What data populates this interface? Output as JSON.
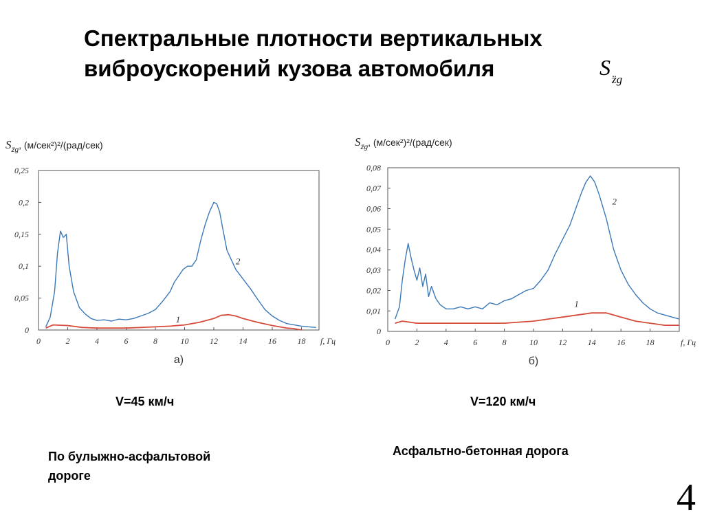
{
  "slide": {
    "title_line1": "Спектральные плотности вертикальных",
    "title_line2": "виброускорений кузова автомобиля",
    "title_symbol": "S",
    "title_symbol_sub": "z̈g",
    "page_number": "4"
  },
  "captions": {
    "speed_a": "V=45 км/ч",
    "speed_b": "V=120 км/ч",
    "road_a_line1": "По булыжно-асфальтовой",
    "road_a_line2": "дороге",
    "road_b": "Асфальтно-бетонная дорога"
  },
  "colors": {
    "curve_1": "#d64a3a",
    "curve_2": "#3a78b8",
    "frame": "#555555"
  },
  "chart_data": [
    {
      "type": "line",
      "panel_label": "а)",
      "ylabel": "S, (м/сек²)²/(рад/сек)",
      "ylabel_sub": "z̈g",
      "xlabel": "f, Гц",
      "xlim": [
        0,
        19.2
      ],
      "ylim": [
        0,
        0.25
      ],
      "x_ticks": [
        "0",
        "2",
        "4",
        "6",
        "8",
        "10",
        "12",
        "14",
        "16",
        "18"
      ],
      "y_ticks": [
        "0",
        "0.05",
        "0.1",
        "0.15",
        "0.2",
        "0.25"
      ],
      "series": [
        {
          "name": "1",
          "x": [
            0.5,
            1.0,
            2.0,
            3.0,
            4.0,
            6.0,
            8.0,
            9.0,
            10.0,
            11.0,
            12.0,
            12.5,
            13.0,
            13.5,
            14.0,
            15.0,
            16.0,
            17.0,
            17.5,
            18.0
          ],
          "y": [
            0.003,
            0.008,
            0.007,
            0.004,
            0.003,
            0.003,
            0.005,
            0.006,
            0.008,
            0.012,
            0.018,
            0.023,
            0.024,
            0.022,
            0.018,
            0.012,
            0.007,
            0.003,
            0.002,
            0.0
          ],
          "label_at": [
            9.4,
            0.012
          ]
        },
        {
          "name": "2",
          "x": [
            0.5,
            0.8,
            1.1,
            1.3,
            1.5,
            1.7,
            1.9,
            2.1,
            2.4,
            2.8,
            3.2,
            3.6,
            4.0,
            4.5,
            5.0,
            5.5,
            6.0,
            6.5,
            7.0,
            7.5,
            8.0,
            8.5,
            9.0,
            9.3,
            9.6,
            9.9,
            10.2,
            10.5,
            10.8,
            11.1,
            11.4,
            11.7,
            12.0,
            12.2,
            12.4,
            12.6,
            12.9,
            13.2,
            13.5,
            14.0,
            14.5,
            15.0,
            15.5,
            16.0,
            16.5,
            17.0,
            17.5,
            18.0,
            18.5,
            19.0
          ],
          "y": [
            0.005,
            0.02,
            0.06,
            0.12,
            0.155,
            0.145,
            0.15,
            0.1,
            0.06,
            0.035,
            0.025,
            0.018,
            0.015,
            0.016,
            0.014,
            0.017,
            0.016,
            0.018,
            0.022,
            0.026,
            0.032,
            0.045,
            0.06,
            0.075,
            0.085,
            0.095,
            0.1,
            0.1,
            0.11,
            0.14,
            0.165,
            0.185,
            0.2,
            0.198,
            0.185,
            0.16,
            0.125,
            0.11,
            0.095,
            0.08,
            0.065,
            0.048,
            0.032,
            0.022,
            0.015,
            0.01,
            0.008,
            0.006,
            0.005,
            0.004
          ],
          "label_at": [
            13.5,
            0.103
          ]
        }
      ]
    },
    {
      "type": "line",
      "panel_label": "б)",
      "ylabel": "S, (м/сек²)²/(рад/сек)",
      "ylabel_sub": "z̈g",
      "xlabel": "f, Гц",
      "xlim": [
        0,
        20
      ],
      "ylim": [
        0,
        0.08
      ],
      "x_ticks": [
        "0",
        "2",
        "4",
        "6",
        "8",
        "10",
        "12",
        "14",
        "16",
        "18"
      ],
      "y_ticks": [
        "0",
        "0.01",
        "0.02",
        "0.03",
        "0.04",
        "0.05",
        "0.06",
        "0.07",
        "0.08"
      ],
      "series": [
        {
          "name": "1",
          "x": [
            0.5,
            1.0,
            2.0,
            4.0,
            6.0,
            8.0,
            10.0,
            11.0,
            12.0,
            13.0,
            14.0,
            15.0,
            16.0,
            17.0,
            18.0,
            19.0,
            20.0
          ],
          "y": [
            0.004,
            0.005,
            0.004,
            0.004,
            0.004,
            0.004,
            0.005,
            0.006,
            0.007,
            0.008,
            0.009,
            0.009,
            0.007,
            0.005,
            0.004,
            0.003,
            0.003
          ],
          "label_at": [
            12.8,
            0.012
          ]
        },
        {
          "name": "2",
          "x": [
            0.5,
            0.8,
            1.0,
            1.2,
            1.4,
            1.6,
            1.8,
            2.0,
            2.2,
            2.4,
            2.6,
            2.8,
            3.0,
            3.3,
            3.6,
            4.0,
            4.5,
            5.0,
            5.5,
            6.0,
            6.5,
            7.0,
            7.5,
            8.0,
            8.5,
            9.0,
            9.5,
            10.0,
            10.5,
            11.0,
            11.5,
            12.0,
            12.5,
            13.0,
            13.3,
            13.6,
            13.9,
            14.2,
            14.5,
            15.0,
            15.5,
            16.0,
            16.5,
            17.0,
            17.5,
            18.0,
            18.5,
            19.0,
            19.5,
            20.0
          ],
          "y": [
            0.006,
            0.012,
            0.025,
            0.035,
            0.043,
            0.036,
            0.03,
            0.025,
            0.031,
            0.022,
            0.028,
            0.017,
            0.022,
            0.016,
            0.013,
            0.011,
            0.011,
            0.012,
            0.011,
            0.012,
            0.011,
            0.014,
            0.013,
            0.015,
            0.016,
            0.018,
            0.02,
            0.021,
            0.025,
            0.03,
            0.038,
            0.045,
            0.052,
            0.062,
            0.068,
            0.073,
            0.076,
            0.073,
            0.067,
            0.055,
            0.04,
            0.03,
            0.023,
            0.018,
            0.014,
            0.011,
            0.009,
            0.008,
            0.007,
            0.006
          ],
          "label_at": [
            15.4,
            0.062
          ]
        }
      ]
    }
  ]
}
